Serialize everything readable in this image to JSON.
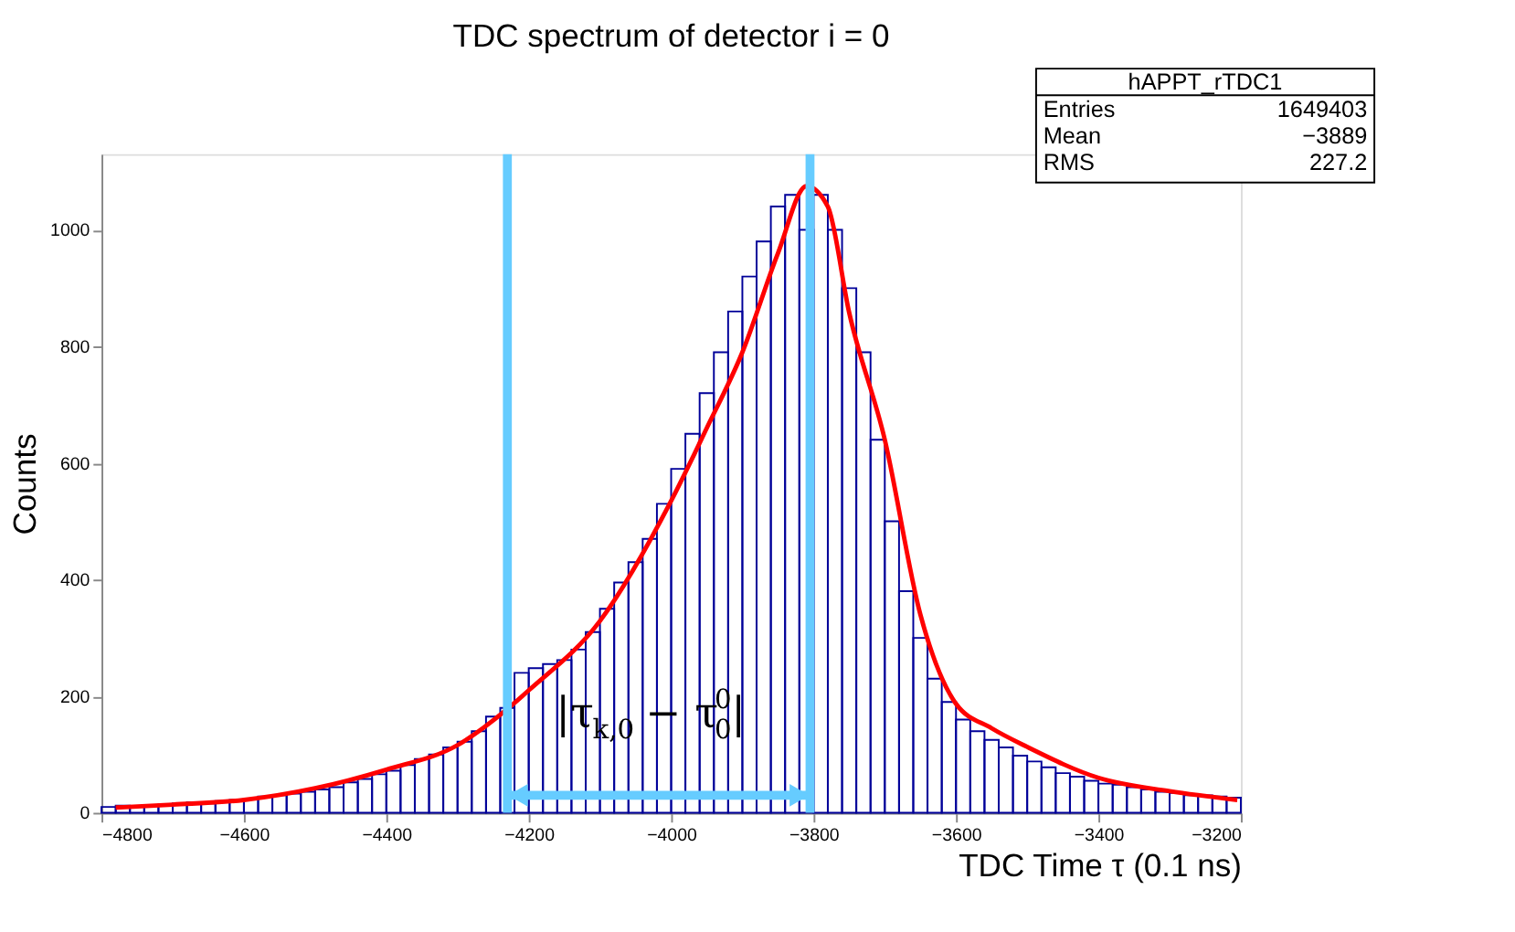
{
  "chart_data": {
    "type": "histogram",
    "title": "TDC spectrum of detector i = 0",
    "xlabel": "TDC Time τ (0.1 ns)",
    "ylabel": "Counts",
    "bins": [
      -4800,
      -4780,
      -4760,
      -4740,
      -4720,
      -4700,
      -4680,
      -4660,
      -4640,
      -4620,
      -4600,
      -4580,
      -4560,
      -4540,
      -4520,
      -4500,
      -4480,
      -4460,
      -4440,
      -4420,
      -4400,
      -4380,
      -4360,
      -4340,
      -4320,
      -4300,
      -4280,
      -4260,
      -4240,
      -4220,
      -4200,
      -4180,
      -4160,
      -4140,
      -4120,
      -4100,
      -4080,
      -4060,
      -4040,
      -4020,
      -4000,
      -3980,
      -3960,
      -3940,
      -3920,
      -3900,
      -3880,
      -3860,
      -3840,
      -3820,
      -3800,
      -3780,
      -3760,
      -3740,
      -3720,
      -3700,
      -3680,
      -3660,
      -3640,
      -3620,
      -3600,
      -3580,
      -3560,
      -3540,
      -3520,
      -3500,
      -3480,
      -3460,
      -3440,
      -3420,
      -3400,
      -3380,
      -3360,
      -3340,
      -3320,
      -3300,
      -3280,
      -3260,
      -3240,
      -3220,
      -3200
    ],
    "values": [
      10,
      12,
      10,
      12,
      14,
      16,
      18,
      16,
      20,
      22,
      24,
      28,
      30,
      33,
      36,
      40,
      44,
      52,
      58,
      66,
      72,
      82,
      92,
      100,
      112,
      122,
      140,
      165,
      180,
      240,
      248,
      255,
      262,
      280,
      310,
      350,
      395,
      430,
      470,
      530,
      590,
      650,
      720,
      790,
      860,
      920,
      980,
      1040,
      1060,
      1000,
      1060,
      1000,
      900,
      790,
      640,
      500,
      380,
      300,
      230,
      190,
      160,
      140,
      125,
      112,
      98,
      88,
      78,
      68,
      62,
      55,
      50,
      48,
      44,
      40,
      36,
      34,
      30,
      30,
      28,
      26
    ],
    "color": "#000099",
    "series": [
      {
        "type": "line",
        "color": "#ff0000",
        "x": [
          -4780,
          -4700,
          -4600,
          -4500,
          -4400,
          -4300,
          -4230,
          -4200,
          -4100,
          -4000,
          -3950,
          -3900,
          -3850,
          -3810,
          -3780,
          -3750,
          -3700,
          -3650,
          -3600,
          -3550,
          -3500,
          -3400,
          -3300,
          -3205
        ],
        "values": [
          9,
          14,
          22,
          42,
          74,
          116,
          178,
          210,
          329,
          535,
          660,
          790,
          960,
          1075,
          1040,
          858,
          640,
          340,
          187,
          145,
          113,
          60,
          37,
          22
        ]
      }
    ],
    "xlim": [
      -4800,
      -3200
    ],
    "xticks": [
      -4800,
      -4600,
      -4400,
      -4200,
      -4000,
      -3800,
      -3600,
      -3400,
      -3200
    ],
    "ylim": [
      0,
      1130
    ],
    "yticks": [
      0,
      200,
      400,
      600,
      800,
      1000
    ],
    "grid": false,
    "legend": false,
    "ref_lines": [
      {
        "axis": "x",
        "value": -4230,
        "color": "#66ccff"
      },
      {
        "axis": "x",
        "value": -3805,
        "color": "#66ccff"
      }
    ],
    "annotations": [
      "hAPPT_rTDC1",
      "Entries 1649403",
      "Mean −3889",
      "RMS 227.2",
      {
        "text": "|τ$_{k,0}$ − τ$_{0}$$^{0}$|",
        "x": -4017,
        "y": 30
      }
    ]
  }
}
